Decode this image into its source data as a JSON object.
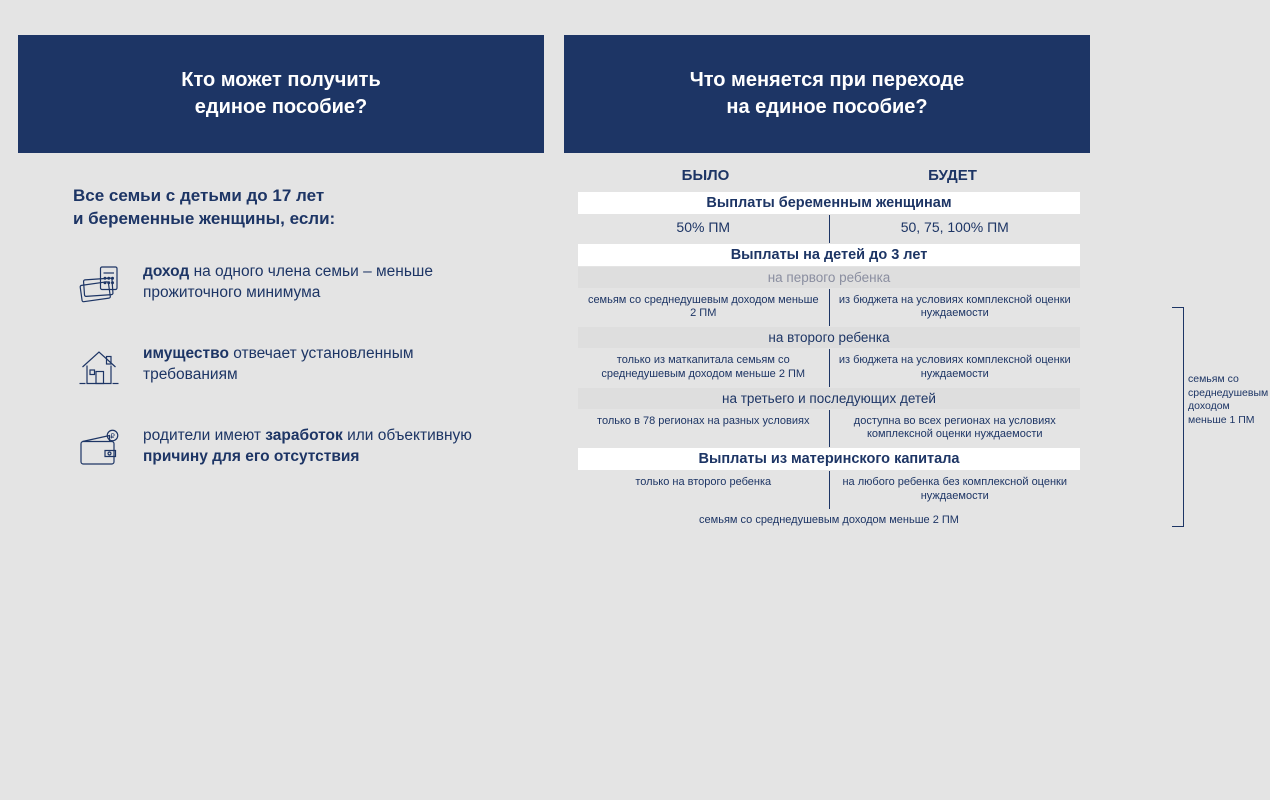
{
  "colors": {
    "header_bg": "#1d3565",
    "header_text": "#ffffff",
    "page_bg": "#e4e4e4",
    "text": "#1d3565",
    "subheading_bg": "#dedede",
    "subheading_muted": "#8a8ea0"
  },
  "left": {
    "title_line1": "Кто может получить",
    "title_line2": "единое пособие?",
    "intro_line1": "Все семьи с детьми до 17 лет",
    "intro_line2": "и беременные женщины, если:",
    "criteria": [
      {
        "icon": "money-calculator-icon",
        "html": "<b>доход</b> на одного члена семьи – меньше прожиточного минимума"
      },
      {
        "icon": "house-icon",
        "html": "<b>имущество</b> отвечает установленным требованиям"
      },
      {
        "icon": "wallet-icon",
        "html": "родители имеют <b>заработок</b> или объективную <b>причину для его отсутствия</b>"
      }
    ]
  },
  "right": {
    "title_line1": "Что меняется при переходе",
    "title_line2": "на единое пособие?",
    "col_left": "БЫЛО",
    "col_right": "БУДЕТ",
    "side_note": "семьям со среднедушевым доходом меньше 1 ПМ",
    "sections": [
      {
        "title": "Выплаты беременным женщинам",
        "rows": [
          {
            "left": "50% ПМ",
            "right": "50, 75, 100% ПМ",
            "big": true
          }
        ]
      },
      {
        "title": "Выплаты на детей до 3 лет",
        "subsections": [
          {
            "subtitle": "на первого ребенка",
            "muted": true,
            "rows": [
              {
                "left": "семьям со среднедушевым доходом меньше 2 ПМ",
                "right": "из бюджета на условиях комплексной оценки нуждаемости"
              }
            ]
          },
          {
            "subtitle": "на второго ребенка",
            "rows": [
              {
                "left": "только из маткапитала семьям со среднедушевым доходом меньше 2 ПМ",
                "right": "из бюджета на условиях комплексной оценки нуждаемости"
              }
            ]
          },
          {
            "subtitle": "на третьего и последующих детей",
            "rows": [
              {
                "left": "только в 78 регионах на разных условиях",
                "right": "доступна во всех регионах на условиях комплексной оценки нуждаемости"
              }
            ]
          }
        ]
      },
      {
        "title": "Выплаты из материнского капитала",
        "rows": [
          {
            "left": "только на второго ребенка",
            "right": "на любого ребенка без комплексной оценки нуждаемости"
          }
        ],
        "bottom_note": "семьям со среднедушевым доходом меньше 2 ПМ"
      }
    ]
  }
}
